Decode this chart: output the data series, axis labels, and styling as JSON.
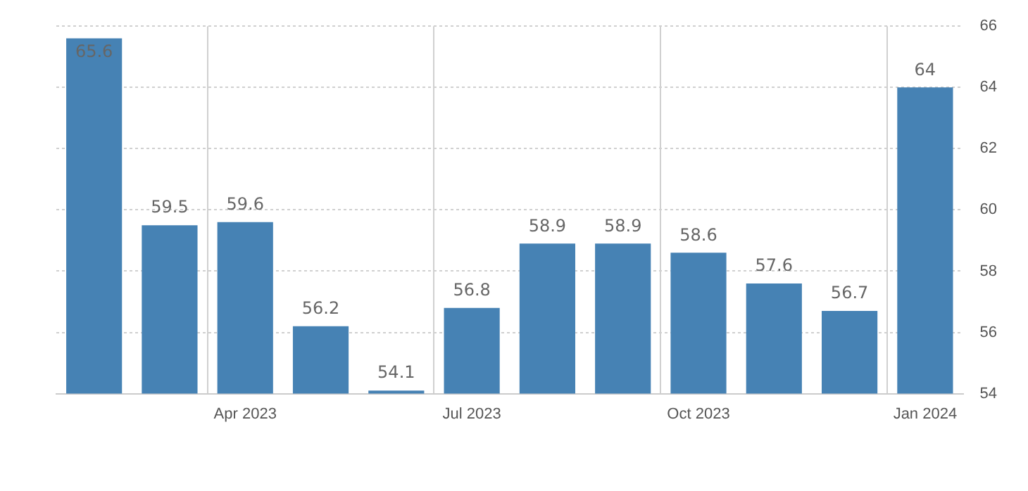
{
  "chart_data": {
    "type": "bar",
    "categories": [
      null,
      null,
      "Apr 2023",
      null,
      null,
      "Jul 2023",
      null,
      null,
      "Oct 2023",
      null,
      null,
      "Jan 2024"
    ],
    "values": [
      65.6,
      59.5,
      59.6,
      56.2,
      54.1,
      56.8,
      58.9,
      58.9,
      58.6,
      57.6,
      56.7,
      64
    ],
    "color": "#4682b4",
    "ylim": [
      54,
      66
    ],
    "yticks": [
      54,
      56,
      58,
      60,
      62,
      64,
      66
    ],
    "grid": true,
    "data_labels": true
  }
}
